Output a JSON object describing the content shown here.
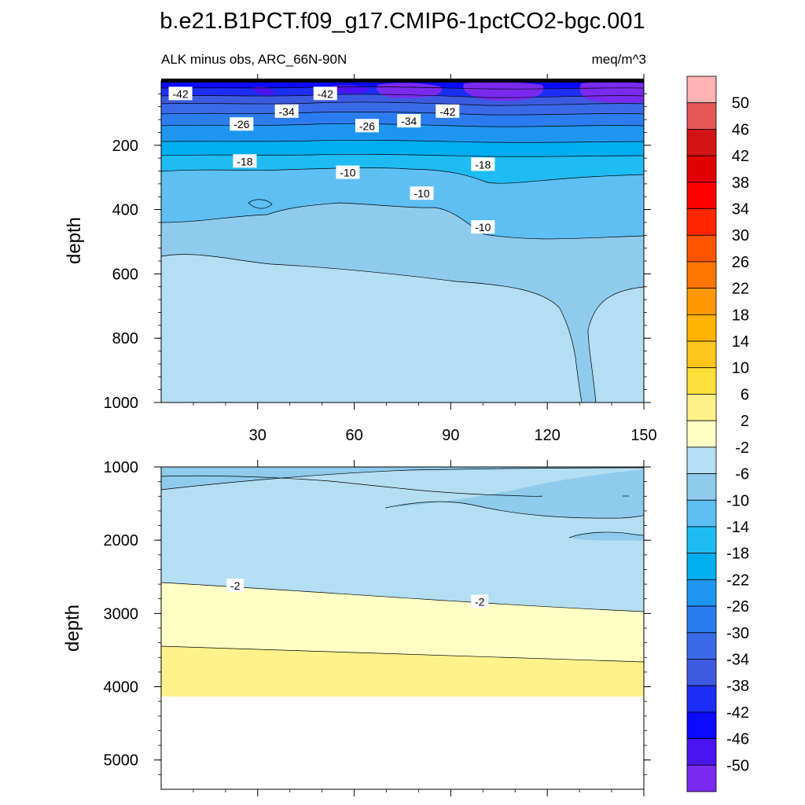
{
  "chart_data": {
    "type": "heatmap",
    "title": "b.e21.B1PCT.f09_g17.CMIP6-1pctCO2-bgc.001",
    "subtitle_left": "ALK minus obs, ARC_66N-90N",
    "subtitle_right": "meq/m^3",
    "xlabel": "",
    "ylabel": "depth",
    "x_range": [
      0,
      150
    ],
    "x_ticks": [
      30,
      60,
      90,
      120,
      150
    ],
    "x_tick_labels": [
      "30",
      "60",
      "90",
      "120",
      "150"
    ],
    "panels": [
      {
        "name": "upper",
        "y_range": [
          0,
          1000
        ],
        "y_ticks": [
          200,
          400,
          600,
          800,
          1000
        ],
        "y_tick_labels": [
          "200",
          "400",
          "600",
          "800",
          "1000"
        ],
        "ylabel": "depth",
        "contour_labels": [
          {
            "text": "-42",
            "x": 6,
            "y": 40
          },
          {
            "text": "-42",
            "x": 51,
            "y": 40
          },
          {
            "text": "-34",
            "x": 39,
            "y": 95
          },
          {
            "text": "-42",
            "x": 89,
            "y": 95
          },
          {
            "text": "-26",
            "x": 25,
            "y": 135
          },
          {
            "text": "-26",
            "x": 64,
            "y": 140
          },
          {
            "text": "-34",
            "x": 77,
            "y": 125
          },
          {
            "text": "-18",
            "x": 26,
            "y": 250
          },
          {
            "text": "-18",
            "x": 100,
            "y": 260
          },
          {
            "text": "-10",
            "x": 58,
            "y": 285
          },
          {
            "text": "-10",
            "x": 81,
            "y": 350
          },
          {
            "text": "-10",
            "x": 100,
            "y": 455
          }
        ]
      },
      {
        "name": "lower",
        "y_range": [
          1000,
          5400
        ],
        "y_ticks": [
          1000,
          2000,
          3000,
          4000,
          5000
        ],
        "y_tick_labels": [
          "1000",
          "2000",
          "3000",
          "4000",
          "5000"
        ],
        "ylabel": "depth",
        "contour_labels": [
          {
            "text": "-2",
            "x": 23,
            "y": 2620
          },
          {
            "text": "-2",
            "x": 99,
            "y": 2840
          }
        ]
      }
    ],
    "colorbar": {
      "labels": [
        "50",
        "46",
        "42",
        "38",
        "34",
        "30",
        "26",
        "22",
        "18",
        "14",
        "10",
        "6",
        "2",
        "-2",
        "-6",
        "-10",
        "-14",
        "-18",
        "-22",
        "-26",
        "-30",
        "-34",
        "-38",
        "-42",
        "-46",
        "-50"
      ],
      "colors": [
        "#ffb3b3",
        "#e65858",
        "#d21414",
        "#e00000",
        "#ff0000",
        "#ff2600",
        "#ff5500",
        "#ff7700",
        "#ff9900",
        "#ffb300",
        "#ffc61c",
        "#ffe03a",
        "#fff28a",
        "#ffffc6",
        "#b4def2",
        "#8ecbec",
        "#5ebff2",
        "#1fbcf4",
        "#00aef0",
        "#1e96f0",
        "#2b7cf0",
        "#3a6ae8",
        "#3c5ae0",
        "#1c2ef5",
        "#0a0aff",
        "#4a14f2",
        "#7a2aee"
      ]
    }
  }
}
